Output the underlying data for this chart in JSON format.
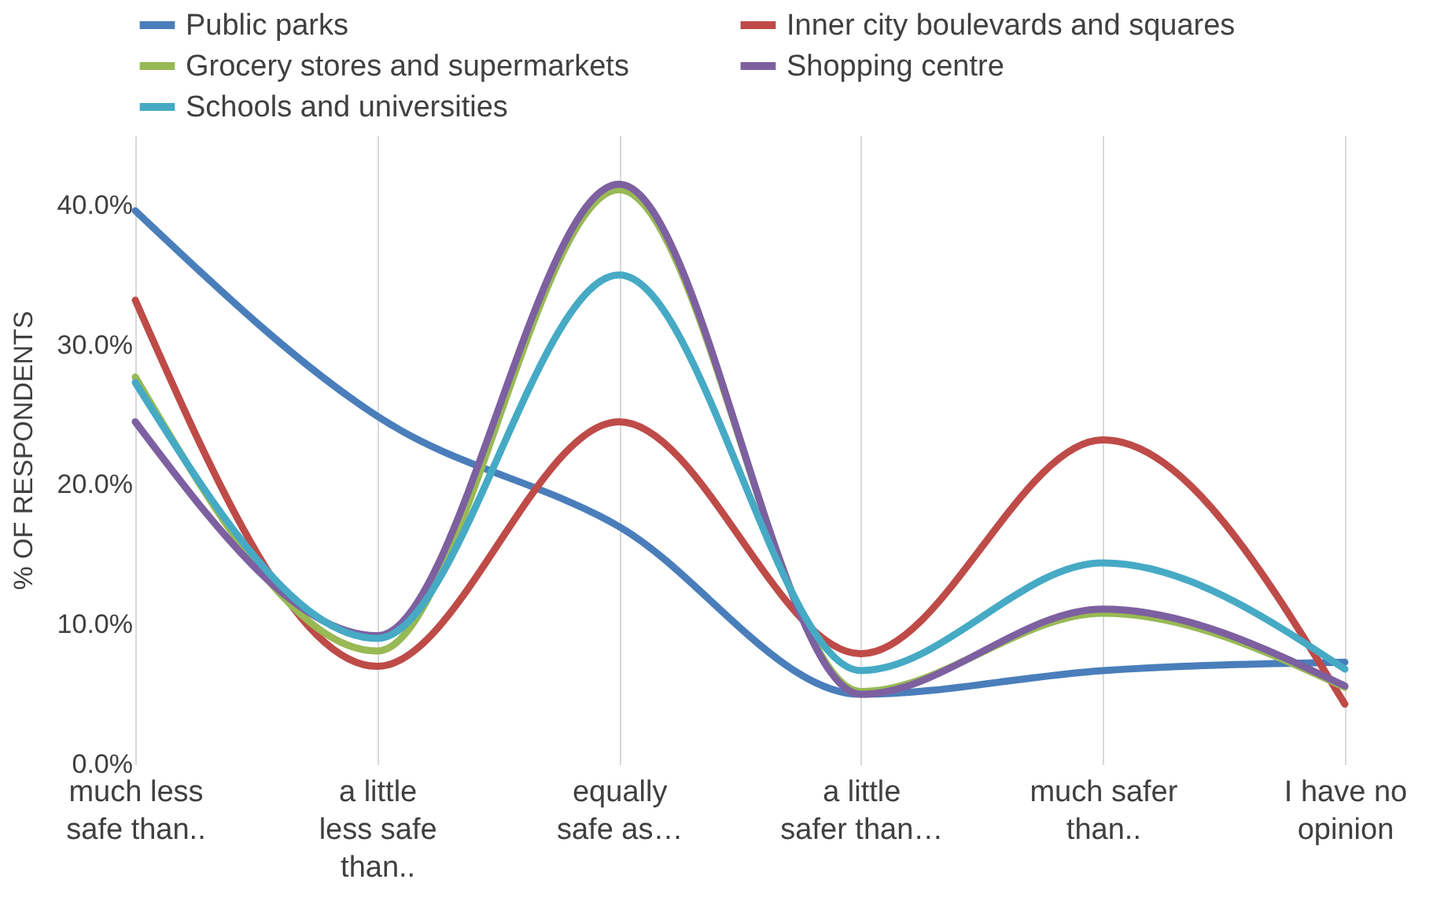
{
  "chart_data": {
    "type": "line",
    "ylabel": "% OF RESPONDENTS",
    "categories": [
      "much less safe than..",
      "a little less safe than..",
      "equally safe as…",
      "a little safer than…",
      "much safer than..",
      "I have no opinion"
    ],
    "series": [
      {
        "name": "Public parks",
        "color": "#4a7ebb",
        "values": [
          39.6,
          24.9,
          17.0,
          5.0,
          6.7,
          7.3
        ]
      },
      {
        "name": "Inner city boulevards and squares",
        "color": "#be4b48",
        "values": [
          33.2,
          7.0,
          24.5,
          7.9,
          23.2,
          4.3
        ]
      },
      {
        "name": "Grocery stores and supermarkets",
        "color": "#98b954",
        "values": [
          27.7,
          8.1,
          41.1,
          5.2,
          10.8,
          5.5
        ]
      },
      {
        "name": "Shopping centre",
        "color": "#7d60a0",
        "values": [
          24.5,
          9.2,
          41.5,
          5.0,
          11.1,
          5.6
        ]
      },
      {
        "name": "Schools and universities",
        "color": "#46aac5",
        "values": [
          27.3,
          9.0,
          35.0,
          6.7,
          14.4,
          6.8
        ]
      }
    ],
    "ylim": [
      0,
      45
    ],
    "yticks": [
      {
        "value": 0,
        "label": "0.0%"
      },
      {
        "value": 10,
        "label": "10.0%"
      },
      {
        "value": 20,
        "label": "20.0%"
      },
      {
        "value": 30,
        "label": "30.0%"
      },
      {
        "value": 40,
        "label": "40.0%"
      }
    ],
    "grid": "x",
    "legend": "top",
    "marker": "none",
    "line_style": "solid"
  }
}
